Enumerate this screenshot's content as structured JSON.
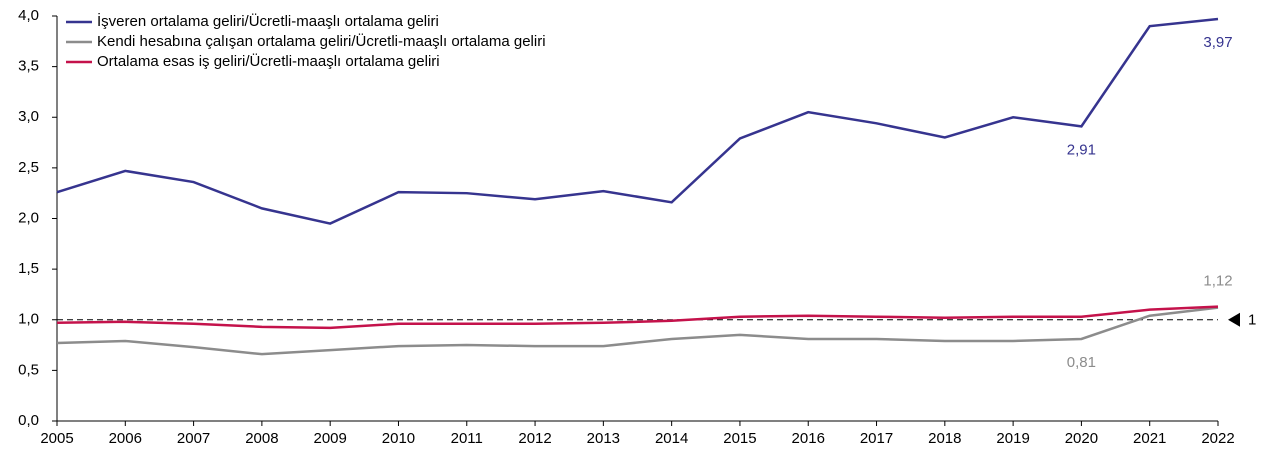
{
  "chart_data": {
    "type": "line",
    "x": [
      2005,
      2006,
      2007,
      2008,
      2009,
      2010,
      2011,
      2012,
      2013,
      2014,
      2015,
      2016,
      2017,
      2018,
      2019,
      2020,
      2021,
      2022
    ],
    "series": [
      {
        "name": "İşveren ortalama geliri/Ücretli-maaşlı ortalama geliri",
        "color": "#36348f",
        "values": [
          2.26,
          2.47,
          2.36,
          2.1,
          1.95,
          2.26,
          2.25,
          2.19,
          2.27,
          2.16,
          2.79,
          3.05,
          2.94,
          2.8,
          3.0,
          2.91,
          3.9,
          3.97
        ],
        "value_labels": [
          null,
          null,
          null,
          null,
          null,
          null,
          null,
          null,
          null,
          null,
          null,
          null,
          null,
          null,
          null,
          "2,91",
          null,
          "3,97"
        ]
      },
      {
        "name": "Kendi hesabına çalışan ortalama geliri/Ücretli-maaşlı ortalama geliri",
        "color": "#8c8c8c",
        "values": [
          0.77,
          0.79,
          0.73,
          0.66,
          0.7,
          0.74,
          0.75,
          0.74,
          0.74,
          0.81,
          0.85,
          0.81,
          0.81,
          0.79,
          0.79,
          0.81,
          1.04,
          1.12
        ],
        "value_labels": [
          null,
          null,
          null,
          null,
          null,
          null,
          null,
          null,
          null,
          null,
          null,
          null,
          null,
          null,
          null,
          "0,81",
          null,
          "1,12"
        ]
      },
      {
        "name": "Ortalama esas iş geliri/Ücretli-maaşlı ortalama geliri",
        "color": "#c4124b",
        "values": [
          0.97,
          0.98,
          0.96,
          0.93,
          0.92,
          0.96,
          0.96,
          0.96,
          0.97,
          0.99,
          1.03,
          1.04,
          1.03,
          1.02,
          1.03,
          1.03,
          1.1,
          1.13
        ]
      }
    ],
    "xlim": [
      2005,
      2022
    ],
    "xticks": [
      2005,
      2006,
      2007,
      2008,
      2009,
      2010,
      2011,
      2012,
      2013,
      2014,
      2015,
      2016,
      2017,
      2018,
      2019,
      2020,
      2021,
      2022
    ],
    "ylim": [
      0,
      4
    ],
    "yticks": [
      {
        "value": 0,
        "label": "0,0"
      },
      {
        "value": 0.5,
        "label": "0,5"
      },
      {
        "value": 1,
        "label": "1,0"
      },
      {
        "value": 1.5,
        "label": "1,5"
      },
      {
        "value": 2,
        "label": "2,0"
      },
      {
        "value": 2.5,
        "label": "2,5"
      },
      {
        "value": 3,
        "label": "3,0"
      },
      {
        "value": 3.5,
        "label": "3,5"
      },
      {
        "value": 4,
        "label": "4,0"
      }
    ],
    "reference_line": 1,
    "legend": "upper left"
  }
}
